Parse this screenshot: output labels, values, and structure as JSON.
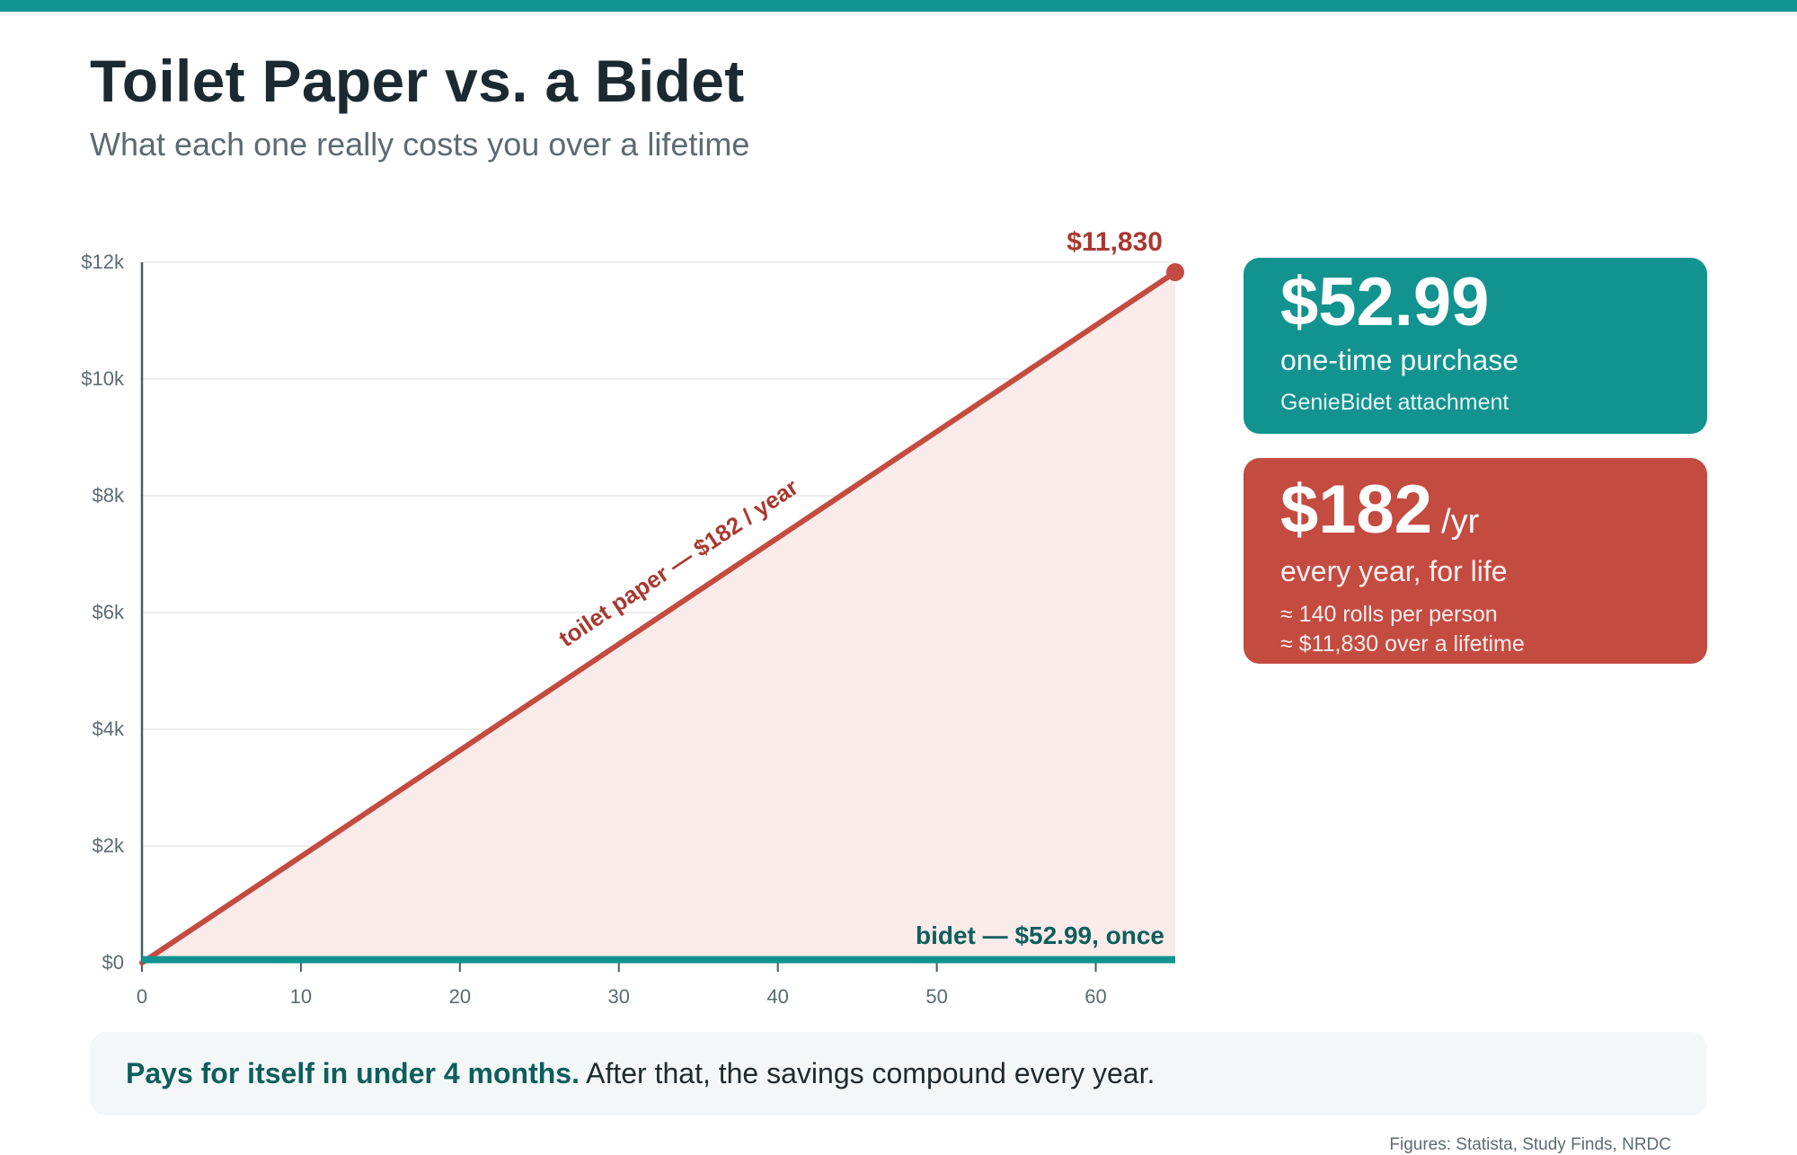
{
  "title": "Toilet Paper vs. a Bidet",
  "subtitle": "What each one really costs you over a lifetime",
  "colors": {
    "teal": "#129390",
    "red": "#c44b40",
    "fill": "#f9ebea",
    "grid": "#e7e9ea",
    "axis": "#4a5a60"
  },
  "chart_data": {
    "type": "line",
    "title": "",
    "xlabel": "",
    "ylabel": "",
    "xlim": [
      0,
      65
    ],
    "ylim": [
      0,
      12000
    ],
    "x_ticks": [
      0,
      10,
      20,
      30,
      40,
      50,
      60
    ],
    "x_tick_labels": [
      "0",
      "10",
      "20",
      "30",
      "40",
      "50",
      "60"
    ],
    "y_ticks": [
      0,
      2000,
      4000,
      6000,
      8000,
      10000,
      12000
    ],
    "y_tick_labels": [
      "$0",
      "$2k",
      "$4k",
      "$6k",
      "$8k",
      "$10k",
      "$12k"
    ],
    "grid": true,
    "legend": "none",
    "series": [
      {
        "key": "toilet_paper",
        "x": [
          0,
          65
        ],
        "y": [
          0,
          11830
        ],
        "color": "#c44b40",
        "filled": true,
        "label": "toilet paper — $182 / year",
        "end_label": "$11,830"
      },
      {
        "key": "bidet",
        "x": [
          0,
          65
        ],
        "y": [
          52.99,
          52.99
        ],
        "color": "#129390",
        "filled": false,
        "label": "bidet — $52.99, once"
      }
    ]
  },
  "cards": {
    "bidet": {
      "amount": "$52.99",
      "line1": "one-time purchase",
      "line2": "GenieBidet attachment"
    },
    "toilet_paper": {
      "amount": "$182",
      "unit": "/yr",
      "line1": "every year, for life",
      "line2": "≈ 140 rolls per person",
      "line3": "≈ $11,830 over a lifetime"
    }
  },
  "callout": {
    "strong": "Pays for itself in under 4 months.",
    "rest": " After that, the savings compound every year."
  },
  "source": "Figures: Statista, Study Finds, NRDC"
}
